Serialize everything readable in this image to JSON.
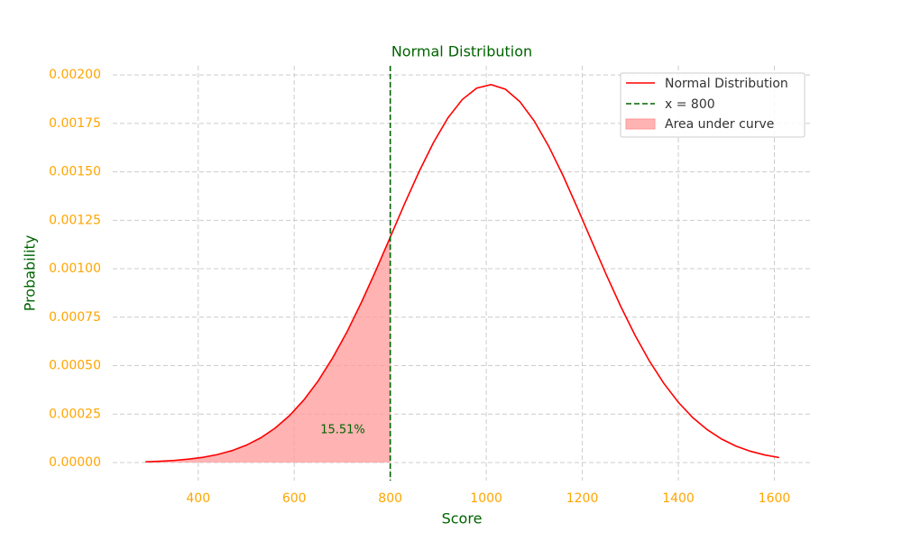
{
  "chart_data": {
    "type": "line",
    "title": "Normal Distribution",
    "xlabel": "Score",
    "ylabel": "Probability",
    "x": [
      290,
      320,
      350,
      380,
      410,
      440,
      470,
      500,
      530,
      560,
      590,
      620,
      650,
      680,
      710,
      740,
      770,
      800,
      830,
      860,
      890,
      920,
      950,
      980,
      1010,
      1040,
      1070,
      1100,
      1130,
      1160,
      1190,
      1220,
      1250,
      1280,
      1310,
      1340,
      1370,
      1400,
      1430,
      1460,
      1490,
      1520,
      1550,
      1580,
      1610
    ],
    "series": [
      {
        "name": "Normal Distribution",
        "color": "#ff0000",
        "values": [
          4.1e-06,
          6.8e-06,
          1.11e-05,
          1.76e-05,
          2.72e-05,
          4.13e-05,
          6.14e-05,
          8.94e-05,
          0.0001273,
          0.0001774,
          0.000242,
          0.000323,
          0.000422,
          0.00054,
          0.000675,
          0.000827,
          0.000991,
          0.001163,
          0.001336,
          0.001501,
          0.001651,
          0.001778,
          0.001873,
          0.001932,
          0.00195,
          0.001926,
          0.001862,
          0.001762,
          0.001632,
          0.00148,
          0.001313,
          0.00114,
          0.000969,
          0.000806,
          0.000656,
          0.000523,
          0.000408,
          0.000311,
          0.000232,
          0.00017,
          0.0001216,
          8.51e-05,
          5.84e-05,
          3.92e-05,
          2.57e-05
        ]
      }
    ],
    "vline": {
      "name": "x = 800",
      "x": 800,
      "color": "#006400"
    },
    "fill": {
      "name": "Area under curve",
      "color": "#ff9999"
    },
    "annotation": "15.51%",
    "xlim": [
      222,
      1678
    ],
    "ylim": [
      -9.3e-05,
      0.002047
    ],
    "xticks": [
      400,
      600,
      800,
      1000,
      1200,
      1400,
      1600
    ],
    "yticks": [
      {
        "value": 0,
        "label": "0.00000"
      },
      {
        "value": 0.00025,
        "label": "0.00025"
      },
      {
        "value": 0.0005,
        "label": "0.00050"
      },
      {
        "value": 0.00075,
        "label": "0.00075"
      },
      {
        "value": 0.001,
        "label": "0.00100"
      },
      {
        "value": 0.00125,
        "label": "0.00125"
      },
      {
        "value": 0.0015,
        "label": "0.00150"
      },
      {
        "value": 0.00175,
        "label": "0.00175"
      },
      {
        "value": 0.002,
        "label": "0.00200"
      }
    ],
    "grid": true,
    "legend": "upper right"
  }
}
